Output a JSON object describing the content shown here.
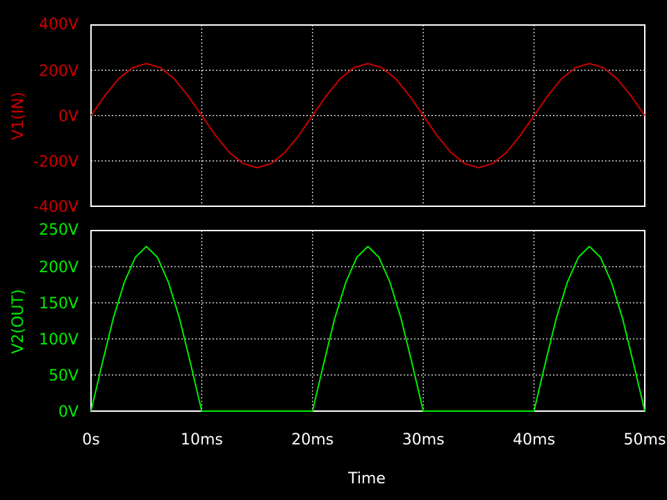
{
  "chart_data": [
    {
      "type": "line",
      "ylabel": "V1(IN)",
      "color": "#cc0000",
      "xlim": [
        0,
        50
      ],
      "ylim": [
        -400,
        400
      ],
      "y_ticks": [
        400,
        200,
        0,
        -200,
        -400
      ],
      "y_tick_labels": [
        "400V",
        "200V",
        "0V",
        "-200V",
        "-400V"
      ],
      "grid": true,
      "series": [
        {
          "x": [
            0,
            1.25,
            2.5,
            3.75,
            5,
            6.25,
            7.5,
            8.75,
            10,
            11.25,
            12.5,
            13.75,
            15,
            16.25,
            17.5,
            18.75,
            20,
            21.25,
            22.5,
            23.75,
            25,
            26.25,
            27.5,
            28.75,
            30,
            31.25,
            32.5,
            33.75,
            35,
            36.25,
            37.5,
            38.75,
            40,
            41.25,
            42.5,
            43.75,
            45,
            46.25,
            47.5,
            48.75,
            50
          ],
          "y": [
            0,
            88,
            163,
            212,
            230,
            212,
            163,
            88,
            0,
            -88,
            -163,
            -212,
            -230,
            -212,
            -163,
            -88,
            0,
            88,
            163,
            212,
            230,
            212,
            163,
            88,
            0,
            -88,
            -163,
            -212,
            -230,
            -212,
            -163,
            -88,
            0,
            88,
            163,
            212,
            230,
            212,
            163,
            88,
            0
          ]
        }
      ]
    },
    {
      "type": "line",
      "ylabel": "V2(OUT)",
      "xlabel": "Time",
      "color": "#00ee00",
      "xlim": [
        0,
        50
      ],
      "ylim": [
        0,
        250
      ],
      "y_ticks": [
        250,
        200,
        150,
        100,
        50,
        0
      ],
      "y_tick_labels": [
        "250V",
        "200V",
        "150V",
        "100V",
        "50V",
        "0V"
      ],
      "x_ticks": [
        0,
        10,
        20,
        30,
        40,
        50
      ],
      "x_tick_labels": [
        "0s",
        "10ms",
        "20ms",
        "30ms",
        "40ms",
        "50ms"
      ],
      "grid": true,
      "series": [
        {
          "x": [
            0,
            1,
            2,
            3,
            4,
            5,
            6,
            7,
            8,
            9,
            10,
            20,
            21,
            22,
            23,
            24,
            25,
            26,
            27,
            28,
            29,
            30,
            40,
            41,
            42,
            43,
            44,
            45,
            46,
            47,
            48,
            49,
            50
          ],
          "y": [
            0,
            65,
            128,
            178,
            213,
            228,
            213,
            178,
            128,
            65,
            0,
            0,
            65,
            128,
            178,
            213,
            228,
            213,
            178,
            128,
            65,
            0,
            0,
            65,
            128,
            178,
            213,
            228,
            213,
            178,
            128,
            65,
            0
          ]
        }
      ]
    }
  ]
}
